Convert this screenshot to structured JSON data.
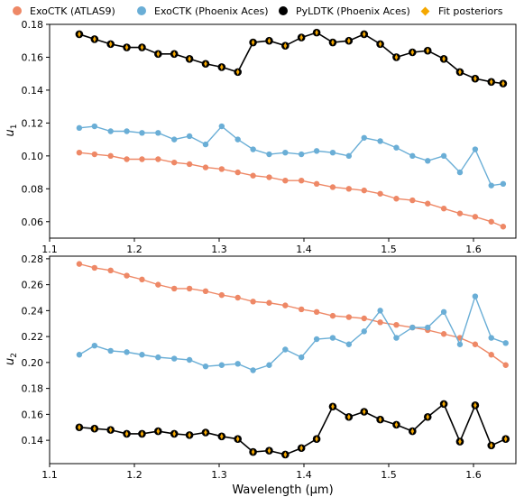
{
  "legend": {
    "items": [
      {
        "label": "ExoCTK (ATLAS9)",
        "color": "#ee8866",
        "marker": "circle"
      },
      {
        "label": "ExoCTK (Phoenix Aces)",
        "color": "#6aaed6",
        "marker": "circle"
      },
      {
        "label": "PyLDTK (Phoenix Aces)",
        "color": "#000000",
        "marker": "circle"
      },
      {
        "label": "Fit posteriors",
        "color": "#f5a800",
        "marker": "diamond"
      }
    ]
  },
  "chart_data": [
    {
      "type": "line",
      "title": "",
      "xlabel": "",
      "ylabel": "u1",
      "xlim": [
        1.1,
        1.65
      ],
      "ylim": [
        0.05,
        0.18
      ],
      "xticks": [
        "1.1",
        "1.2",
        "1.3",
        "1.4",
        "1.5",
        "1.6"
      ],
      "yticks": [
        "0.06",
        "0.08",
        "0.10",
        "0.12",
        "0.14",
        "0.16",
        "0.18"
      ],
      "grid": false,
      "legend_position": "top",
      "x": [
        1.135,
        1.153,
        1.172,
        1.191,
        1.209,
        1.228,
        1.247,
        1.265,
        1.284,
        1.303,
        1.322,
        1.34,
        1.359,
        1.378,
        1.397,
        1.415,
        1.434,
        1.453,
        1.471,
        1.49,
        1.509,
        1.528,
        1.546,
        1.565,
        1.584,
        1.602,
        1.621,
        1.635
      ],
      "series": [
        {
          "name": "ExoCTK (ATLAS9)",
          "values": [
            0.102,
            0.101,
            0.1,
            0.098,
            0.098,
            0.098,
            0.096,
            0.095,
            0.093,
            0.092,
            0.09,
            0.088,
            0.087,
            0.085,
            0.085,
            0.083,
            0.081,
            0.08,
            0.079,
            0.077,
            0.074,
            0.073,
            0.071,
            0.068,
            0.065,
            0.063,
            0.06,
            0.057
          ]
        },
        {
          "name": "ExoCTK (Phoenix Aces)",
          "values": [
            0.117,
            0.118,
            0.115,
            0.115,
            0.114,
            0.114,
            0.11,
            0.112,
            0.107,
            0.118,
            0.11,
            0.104,
            0.101,
            0.102,
            0.101,
            0.103,
            0.102,
            0.1,
            0.111,
            0.109,
            0.105,
            0.1,
            0.097,
            0.1,
            0.09,
            0.104,
            0.082,
            0.083
          ]
        },
        {
          "name": "PyLDTK (Phoenix Aces)",
          "values": [
            0.174,
            0.171,
            0.168,
            0.166,
            0.166,
            0.162,
            0.162,
            0.159,
            0.156,
            0.154,
            0.151,
            0.169,
            0.17,
            0.167,
            0.172,
            0.175,
            0.169,
            0.17,
            0.174,
            0.168,
            0.16,
            0.163,
            0.164,
            0.159,
            0.151,
            0.147,
            0.145,
            0.144
          ]
        }
      ]
    },
    {
      "type": "line",
      "title": "",
      "xlabel": "Wavelength (μm)",
      "ylabel": "u2",
      "xlim": [
        1.1,
        1.65
      ],
      "ylim": [
        0.122,
        0.282
      ],
      "xticks": [
        "1.1",
        "1.2",
        "1.3",
        "1.4",
        "1.5",
        "1.6"
      ],
      "yticks": [
        "0.14",
        "0.16",
        "0.18",
        "0.20",
        "0.22",
        "0.24",
        "0.26",
        "0.28"
      ],
      "grid": false,
      "x": [
        1.135,
        1.153,
        1.172,
        1.191,
        1.209,
        1.228,
        1.247,
        1.265,
        1.284,
        1.303,
        1.322,
        1.34,
        1.359,
        1.378,
        1.397,
        1.415,
        1.434,
        1.453,
        1.471,
        1.49,
        1.509,
        1.528,
        1.546,
        1.565,
        1.584,
        1.602,
        1.621,
        1.638
      ],
      "series": [
        {
          "name": "ExoCTK (ATLAS9)",
          "values": [
            0.276,
            0.273,
            0.271,
            0.267,
            0.264,
            0.26,
            0.257,
            0.257,
            0.255,
            0.252,
            0.25,
            0.247,
            0.246,
            0.244,
            0.241,
            0.239,
            0.236,
            0.235,
            0.234,
            0.231,
            0.229,
            0.227,
            0.225,
            0.222,
            0.219,
            0.214,
            0.206,
            0.198
          ]
        },
        {
          "name": "ExoCTK (Phoenix Aces)",
          "values": [
            0.206,
            0.213,
            0.209,
            0.208,
            0.206,
            0.204,
            0.203,
            0.202,
            0.197,
            0.198,
            0.199,
            0.194,
            0.198,
            0.21,
            0.204,
            0.218,
            0.219,
            0.214,
            0.224,
            0.24,
            0.219,
            0.227,
            0.227,
            0.239,
            0.214,
            0.251,
            0.219,
            0.215
          ]
        },
        {
          "name": "PyLDTK (Phoenix Aces)",
          "values": [
            0.15,
            0.149,
            0.148,
            0.145,
            0.145,
            0.147,
            0.145,
            0.144,
            0.146,
            0.143,
            0.141,
            0.131,
            0.132,
            0.129,
            0.134,
            0.141,
            0.166,
            0.158,
            0.162,
            0.156,
            0.152,
            0.147,
            0.158,
            0.168,
            0.139,
            0.167,
            0.136,
            0.141
          ]
        }
      ]
    }
  ]
}
